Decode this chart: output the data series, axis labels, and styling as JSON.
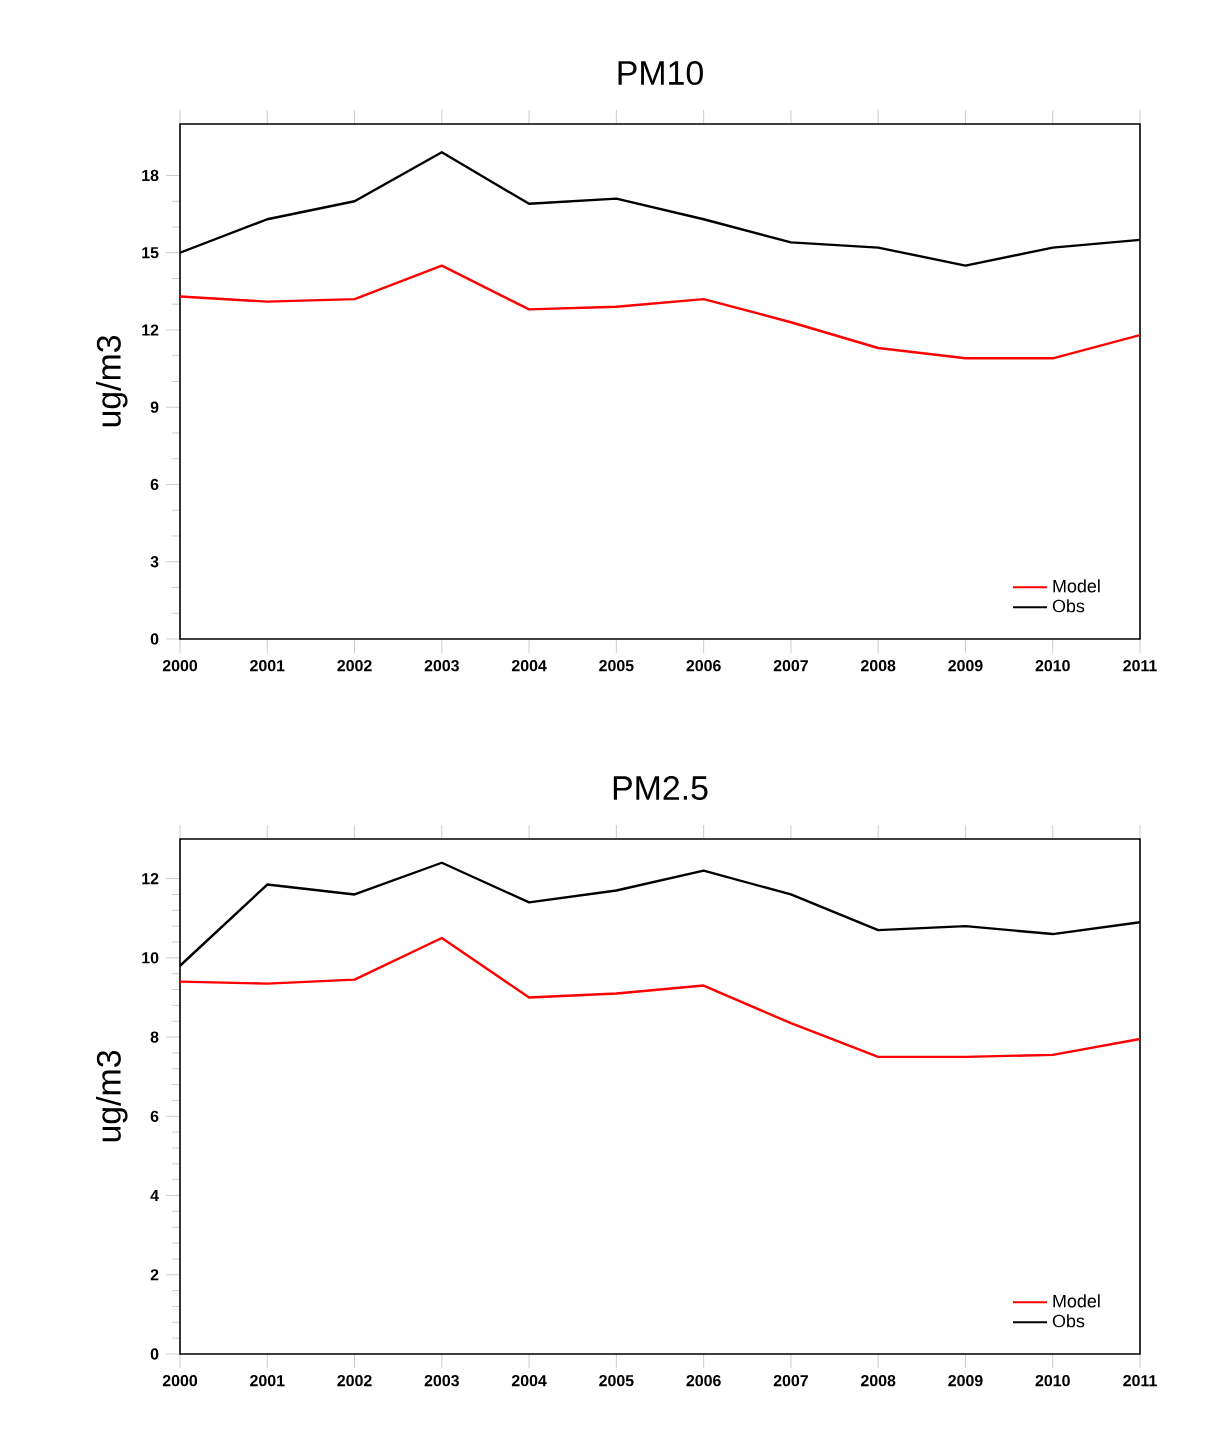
{
  "chart_data": [
    {
      "type": "line",
      "title": "PM10",
      "ylabel": "ug/m3",
      "x": [
        2000,
        2001,
        2002,
        2003,
        2004,
        2005,
        2006,
        2007,
        2008,
        2009,
        2010,
        2011
      ],
      "xlim": [
        2000,
        2011
      ],
      "xticks": [
        2000,
        2001,
        2002,
        2003,
        2004,
        2005,
        2006,
        2007,
        2008,
        2009,
        2010,
        2011
      ],
      "ylim": [
        0,
        20
      ],
      "yticks": [
        0,
        3,
        6,
        9,
        12,
        15,
        18
      ],
      "grid": false,
      "legend": "bottom right",
      "series": [
        {
          "name": "Model",
          "color": "#ff0000",
          "values": [
            13.3,
            13.1,
            13.2,
            14.5,
            12.8,
            12.9,
            13.2,
            12.3,
            11.3,
            10.9,
            10.9,
            11.8
          ]
        },
        {
          "name": "Obs",
          "color": "#000000",
          "values": [
            15.0,
            16.3,
            17.0,
            18.9,
            16.9,
            17.1,
            16.3,
            15.4,
            15.2,
            14.5,
            15.2,
            15.5
          ]
        }
      ]
    },
    {
      "type": "line",
      "title": "PM2.5",
      "ylabel": "ug/m3",
      "x": [
        2000,
        2001,
        2002,
        2003,
        2004,
        2005,
        2006,
        2007,
        2008,
        2009,
        2010,
        2011
      ],
      "xlim": [
        2000,
        2011
      ],
      "xticks": [
        2000,
        2001,
        2002,
        2003,
        2004,
        2005,
        2006,
        2007,
        2008,
        2009,
        2010,
        2011
      ],
      "ylim": [
        0,
        13
      ],
      "yticks": [
        0,
        2,
        4,
        6,
        8,
        10,
        12
      ],
      "grid": false,
      "legend": "bottom right",
      "series": [
        {
          "name": "Model",
          "color": "#ff0000",
          "values": [
            9.4,
            9.35,
            9.45,
            10.5,
            9.0,
            9.1,
            9.3,
            8.35,
            7.5,
            7.5,
            7.55,
            7.95
          ]
        },
        {
          "name": "Obs",
          "color": "#000000",
          "values": [
            9.8,
            11.85,
            11.6,
            12.4,
            11.4,
            11.7,
            12.2,
            11.6,
            10.7,
            10.8,
            10.6,
            10.9
          ]
        }
      ]
    }
  ]
}
